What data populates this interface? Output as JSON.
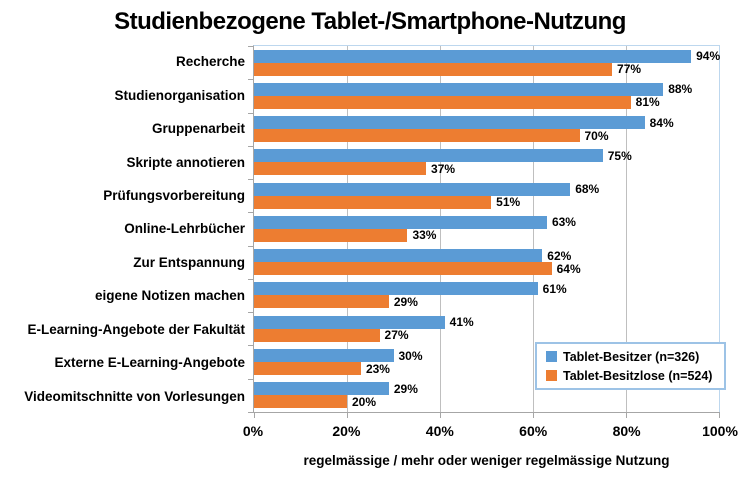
{
  "chart_data": {
    "type": "bar",
    "orientation": "horizontal",
    "title": "Studienbezogene Tablet-/Smartphone-Nutzung",
    "xlabel": "regelmässige / mehr oder weniger regelmässige Nutzung",
    "categories": [
      "Recherche",
      "Studienorganisation",
      "Gruppenarbeit",
      "Skripte annotieren",
      "Prüfungsvorbereitung",
      "Online-Lehrbücher",
      "Zur Entspannung",
      "eigene Notizen machen",
      "E-Learning-Angebote der Fakultät",
      "Externe E-Learning-Angebote",
      "Videomitschnitte von Vorlesungen"
    ],
    "series": [
      {
        "name": "Tablet-Besitzer (n=326)",
        "color": "#5B9BD5",
        "values": [
          94,
          88,
          84,
          75,
          68,
          63,
          62,
          61,
          41,
          30,
          29
        ]
      },
      {
        "name": "Tablet-Besitzlose (n=524)",
        "color": "#ED7D31",
        "values": [
          77,
          81,
          70,
          37,
          51,
          33,
          64,
          29,
          27,
          23,
          20
        ]
      }
    ],
    "x_ticks": [
      "0%",
      "20%",
      "40%",
      "60%",
      "80%",
      "100%"
    ],
    "xlim": [
      0,
      100
    ],
    "grid": true,
    "legend_position": "inside-right",
    "data_label_suffix": "%"
  },
  "colors": {
    "grid": "#BFBFBF",
    "axis": "#A6A6A6",
    "plot_border": "#BDD7EE",
    "legend_border": "#9DC3E6"
  }
}
